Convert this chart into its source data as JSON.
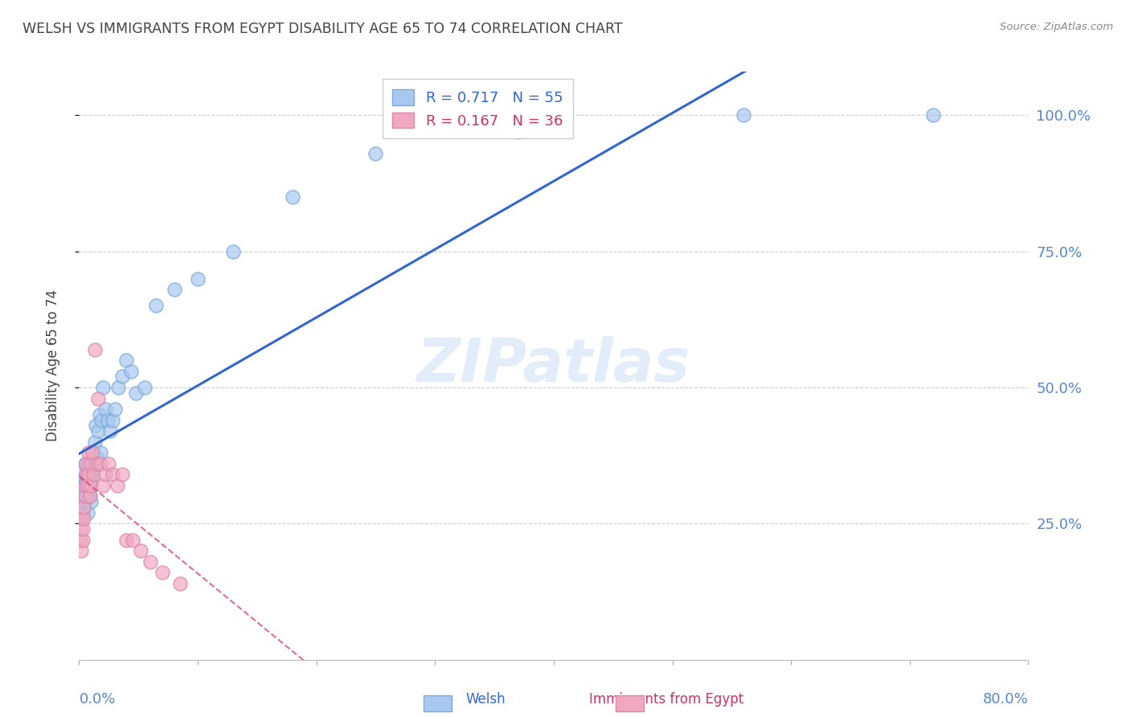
{
  "title": "WELSH VS IMMIGRANTS FROM EGYPT DISABILITY AGE 65 TO 74 CORRELATION CHART",
  "source": "Source: ZipAtlas.com",
  "ylabel": "Disability Age 65 to 74",
  "welsh_R": 0.717,
  "welsh_N": 55,
  "egypt_R": 0.167,
  "egypt_N": 36,
  "welsh_color": "#a8c8f0",
  "welsh_edge_color": "#7aaad8",
  "welsh_line_color": "#3366cc",
  "egypt_color": "#f0a8c0",
  "egypt_edge_color": "#d888a8",
  "egypt_line_color": "#cc3366",
  "watermark": "ZIPatlas",
  "background_color": "#ffffff",
  "grid_color": "#cccccc",
  "axis_label_color": "#5588cc",
  "title_color": "#444444",
  "welsh_x": [
    0.001,
    0.001,
    0.002,
    0.002,
    0.002,
    0.003,
    0.003,
    0.003,
    0.004,
    0.004,
    0.004,
    0.005,
    0.005,
    0.005,
    0.006,
    0.006,
    0.007,
    0.007,
    0.007,
    0.008,
    0.008,
    0.009,
    0.009,
    0.01,
    0.01,
    0.011,
    0.012,
    0.013,
    0.014,
    0.015,
    0.016,
    0.017,
    0.018,
    0.019,
    0.02,
    0.022,
    0.024,
    0.026,
    0.028,
    0.03,
    0.033,
    0.036,
    0.04,
    0.044,
    0.048,
    0.055,
    0.065,
    0.08,
    0.1,
    0.13,
    0.18,
    0.25,
    0.37,
    0.56,
    0.72
  ],
  "welsh_y": [
    0.28,
    0.3,
    0.26,
    0.29,
    0.32,
    0.27,
    0.3,
    0.33,
    0.28,
    0.31,
    0.35,
    0.29,
    0.32,
    0.36,
    0.3,
    0.33,
    0.27,
    0.31,
    0.35,
    0.32,
    0.36,
    0.3,
    0.34,
    0.29,
    0.33,
    0.38,
    0.35,
    0.4,
    0.43,
    0.37,
    0.42,
    0.45,
    0.38,
    0.44,
    0.5,
    0.46,
    0.44,
    0.42,
    0.44,
    0.46,
    0.5,
    0.52,
    0.55,
    0.53,
    0.49,
    0.5,
    0.65,
    0.68,
    0.7,
    0.75,
    0.85,
    0.93,
    0.97,
    1.0,
    1.0
  ],
  "egypt_x": [
    0.001,
    0.001,
    0.002,
    0.002,
    0.003,
    0.003,
    0.004,
    0.004,
    0.005,
    0.005,
    0.006,
    0.006,
    0.007,
    0.008,
    0.008,
    0.009,
    0.01,
    0.01,
    0.011,
    0.012,
    0.013,
    0.015,
    0.016,
    0.018,
    0.02,
    0.022,
    0.025,
    0.028,
    0.032,
    0.036,
    0.04,
    0.045,
    0.052,
    0.06,
    0.07,
    0.085
  ],
  "egypt_y": [
    0.22,
    0.24,
    0.2,
    0.26,
    0.22,
    0.24,
    0.26,
    0.28,
    0.3,
    0.32,
    0.34,
    0.36,
    0.32,
    0.38,
    0.34,
    0.3,
    0.32,
    0.36,
    0.38,
    0.34,
    0.57,
    0.36,
    0.48,
    0.36,
    0.32,
    0.34,
    0.36,
    0.34,
    0.32,
    0.34,
    0.22,
    0.22,
    0.2,
    0.18,
    0.16,
    0.14
  ],
  "xlim": [
    0.0,
    0.8
  ],
  "ylim": [
    0.0,
    1.08
  ],
  "yticks": [
    0.25,
    0.5,
    0.75,
    1.0
  ]
}
